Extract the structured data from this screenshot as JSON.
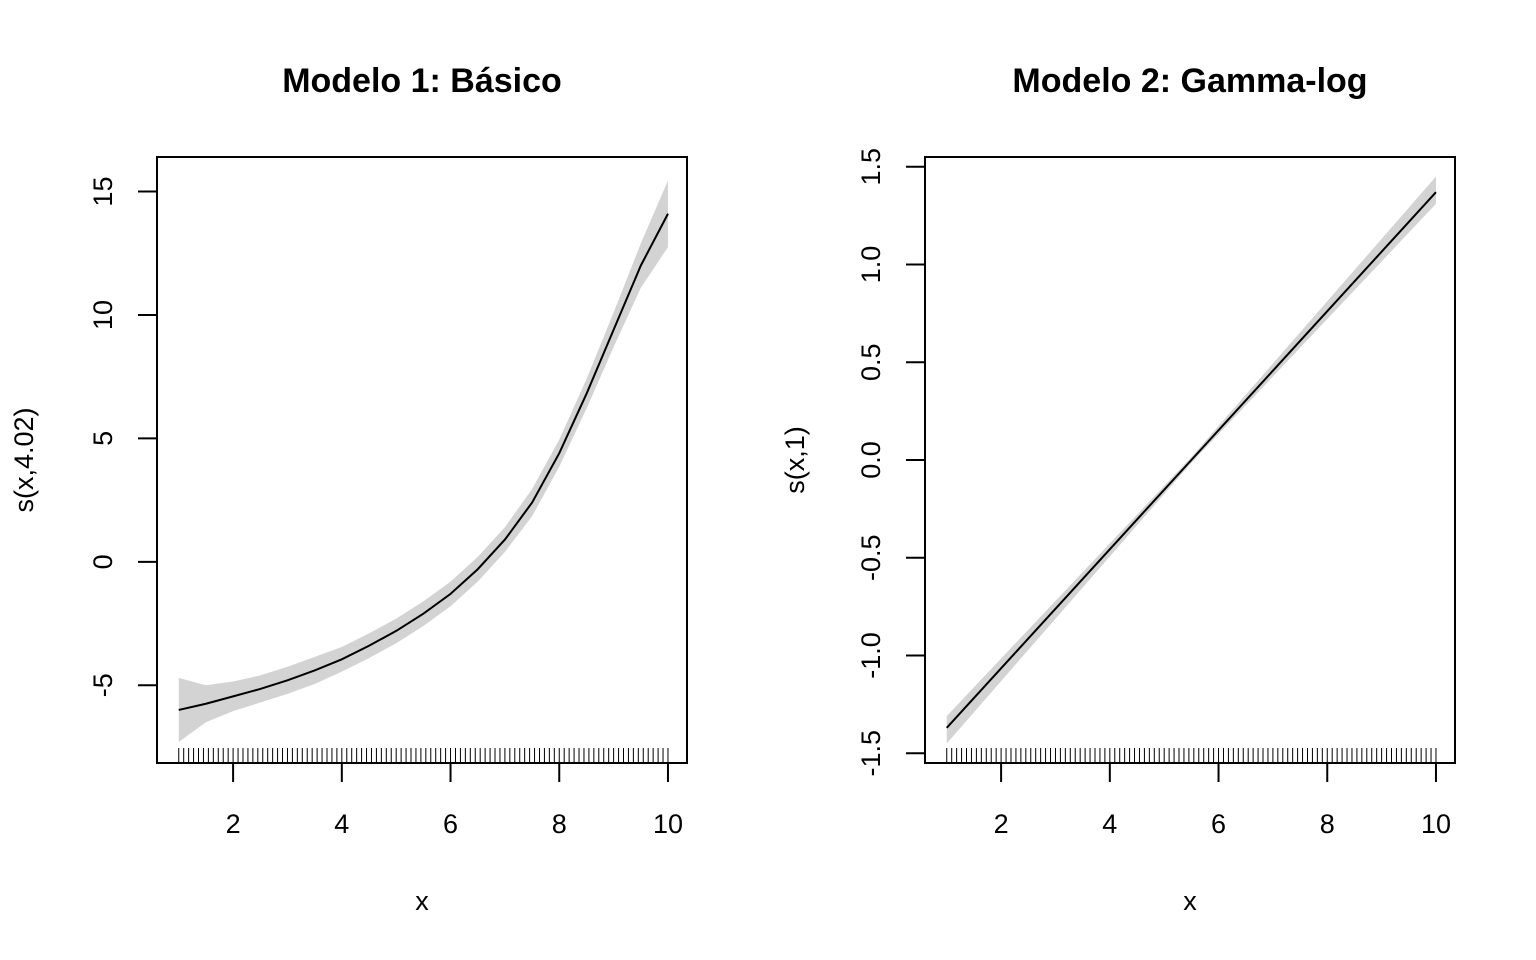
{
  "chart_data": [
    {
      "type": "line",
      "title": "Modelo 1: Básico",
      "xlabel": "x",
      "ylabel": "s(x,4.02)",
      "xlim": [
        0.6,
        10.35
      ],
      "ylim": [
        -8.15,
        16.4
      ],
      "xticks": [
        2,
        4,
        6,
        8,
        10
      ],
      "xtick_labels": [
        "2",
        "4",
        "6",
        "8",
        "10"
      ],
      "yticks": [
        -5,
        0,
        5,
        10,
        15
      ],
      "ytick_labels": [
        "-5",
        "0",
        "5",
        "10",
        "15"
      ],
      "grid": false,
      "confidence_band": true,
      "x": [
        1.0,
        1.5,
        2.0,
        2.5,
        3.0,
        3.5,
        4.0,
        4.5,
        5.0,
        5.5,
        6.0,
        6.5,
        7.0,
        7.5,
        8.0,
        8.5,
        9.0,
        9.5,
        10.0
      ],
      "y": [
        -6.0,
        -5.75,
        -5.45,
        -5.15,
        -4.8,
        -4.4,
        -3.95,
        -3.4,
        -2.8,
        -2.1,
        -1.3,
        -0.3,
        0.9,
        2.4,
        4.4,
        6.8,
        9.4,
        12.0,
        14.1
      ],
      "lower": [
        -7.3,
        -6.5,
        -6.05,
        -5.7,
        -5.35,
        -4.95,
        -4.45,
        -3.9,
        -3.3,
        -2.6,
        -1.8,
        -0.8,
        0.4,
        1.85,
        3.85,
        6.2,
        8.7,
        11.1,
        12.75
      ],
      "upper": [
        -4.7,
        -5.0,
        -4.85,
        -4.6,
        -4.25,
        -3.85,
        -3.45,
        -2.9,
        -2.3,
        -1.6,
        -0.8,
        0.2,
        1.4,
        2.95,
        4.95,
        7.4,
        10.1,
        12.9,
        15.45
      ],
      "rug_x_from": 1.0,
      "rug_x_to": 10.0,
      "rug_count": 100
    },
    {
      "type": "line",
      "title": "Modelo 2: Gamma-log",
      "xlabel": "x",
      "ylabel": "s(x,1)",
      "xlim": [
        0.6,
        10.35
      ],
      "ylim": [
        -1.55,
        1.55
      ],
      "xticks": [
        2,
        4,
        6,
        8,
        10
      ],
      "xtick_labels": [
        "2",
        "4",
        "6",
        "8",
        "10"
      ],
      "yticks": [
        -1.5,
        -1.0,
        -0.5,
        0.0,
        0.5,
        1.0,
        1.5
      ],
      "ytick_labels": [
        "-1.5",
        "-1.0",
        "-0.5",
        "0.0",
        "0.5",
        "1.0",
        "1.5"
      ],
      "grid": false,
      "confidence_band": true,
      "x": [
        1.0,
        5.5,
        10.0
      ],
      "y": [
        -1.37,
        0.0,
        1.37
      ],
      "lower": [
        -1.45,
        -0.015,
        1.31
      ],
      "upper": [
        -1.31,
        0.015,
        1.45
      ],
      "rug_x_from": 1.0,
      "rug_x_to": 10.0,
      "rug_count": 100
    }
  ]
}
